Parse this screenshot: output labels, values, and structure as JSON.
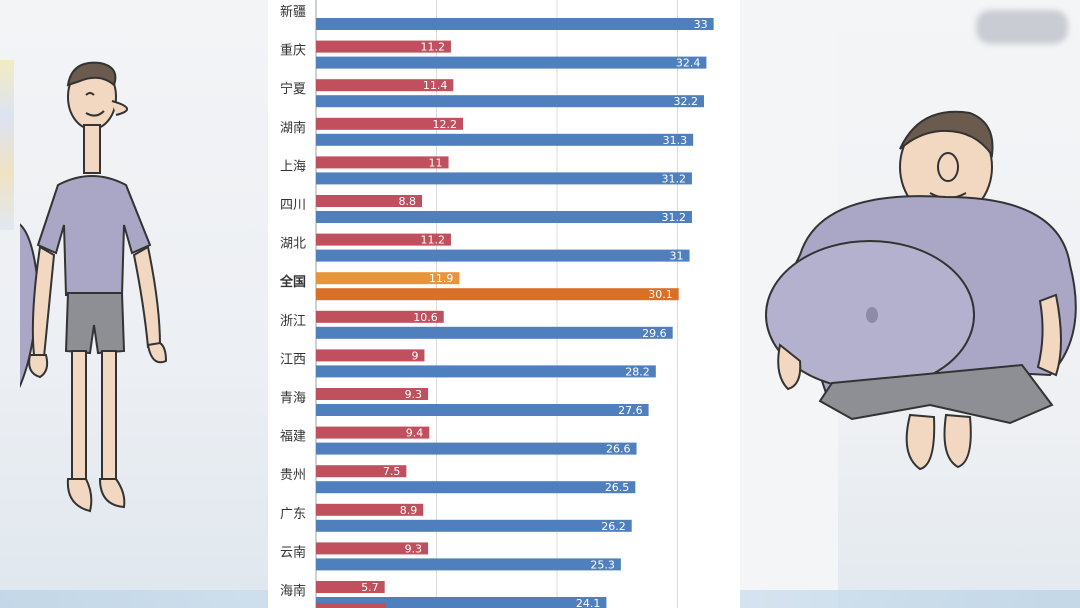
{
  "chart_data": {
    "type": "bar",
    "orientation": "horizontal",
    "categories": [
      "新疆",
      "重庆",
      "宁夏",
      "湖南",
      "上海",
      "四川",
      "湖北",
      "全国",
      "浙江",
      "江西",
      "青海",
      "福建",
      "贵州",
      "广东",
      "云南",
      "海南"
    ],
    "series": [
      {
        "name": "series_a",
        "values": [
          null,
          11.2,
          11.4,
          12.2,
          11,
          8.8,
          11.2,
          11.9,
          10.6,
          9,
          9.3,
          9.4,
          7.5,
          8.9,
          9.3,
          5.7
        ]
      },
      {
        "name": "series_b",
        "values": [
          33,
          32.4,
          32.2,
          31.3,
          31.2,
          31.2,
          31,
          30.1,
          29.6,
          28.2,
          27.6,
          26.6,
          26.5,
          26.2,
          25.3,
          24.1
        ]
      }
    ],
    "highlight_category": "全国",
    "xlim": [
      0,
      35
    ],
    "grid": true
  },
  "colors": {
    "series_a": "#c0505d",
    "series_b": "#4f7fbd",
    "highlight_a": "#e8953a",
    "highlight_b": "#d9702a",
    "grid": "#d9dde3"
  },
  "figures": {
    "left": "thin-man-figure",
    "right": "fat-man-figure"
  }
}
